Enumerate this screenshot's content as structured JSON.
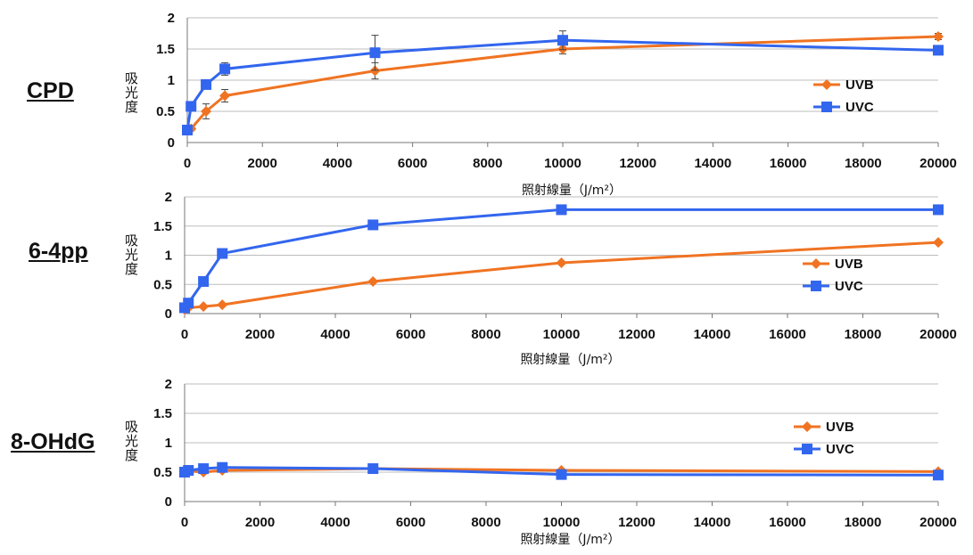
{
  "colors": {
    "uvb": "#f07322",
    "uvc": "#3366ee",
    "grid": "#bdbdbd",
    "axis": "#777777"
  },
  "chart_data": [
    {
      "type": "line",
      "panel_label": "CPD",
      "ylabel": "吸光度",
      "xlabel": "照射線量（J/m²）",
      "xlim": [
        0,
        20000
      ],
      "ylim": [
        0,
        2
      ],
      "xticks": [
        "0",
        "2000",
        "4000",
        "6000",
        "8000",
        "10000",
        "12000",
        "14000",
        "16000",
        "18000",
        "20000"
      ],
      "yticks": [
        "0",
        "0.5",
        "1",
        "1.5",
        "2"
      ],
      "grid": true,
      "legend_position": "right",
      "series": [
        {
          "name": "UVB",
          "marker": "diamond",
          "x": [
            0,
            100,
            500,
            1000,
            5000,
            10000,
            20000
          ],
          "y": [
            0.2,
            0.22,
            0.5,
            0.75,
            1.15,
            1.5,
            1.7
          ],
          "err": [
            0.03,
            0.03,
            0.12,
            0.1,
            0.13,
            0.08,
            0.05
          ]
        },
        {
          "name": "UVC",
          "marker": "square",
          "x": [
            0,
            100,
            500,
            1000,
            5000,
            10000,
            20000
          ],
          "y": [
            0.2,
            0.58,
            0.93,
            1.18,
            1.44,
            1.64,
            1.48
          ],
          "err": [
            0.03,
            0.04,
            0.04,
            0.1,
            0.28,
            0.15,
            0.07
          ]
        }
      ]
    },
    {
      "type": "line",
      "panel_label": "6-4pp",
      "ylabel": "吸光度",
      "xlabel": "照射線量（J/m²）",
      "xlim": [
        0,
        20000
      ],
      "ylim": [
        0,
        2
      ],
      "xticks": [
        "0",
        "2000",
        "4000",
        "6000",
        "8000",
        "10000",
        "12000",
        "14000",
        "16000",
        "18000",
        "20000"
      ],
      "yticks": [
        "0",
        "0.5",
        "1",
        "1.5",
        "2"
      ],
      "grid": true,
      "legend_position": "right",
      "series": [
        {
          "name": "UVB",
          "marker": "diamond",
          "x": [
            0,
            100,
            500,
            1000,
            5000,
            10000,
            20000
          ],
          "y": [
            0.07,
            0.1,
            0.12,
            0.15,
            0.55,
            0.87,
            1.22
          ]
        },
        {
          "name": "UVC",
          "marker": "square",
          "x": [
            0,
            100,
            500,
            1000,
            5000,
            10000,
            20000
          ],
          "y": [
            0.1,
            0.18,
            0.55,
            1.03,
            1.52,
            1.78,
            1.78
          ]
        }
      ]
    },
    {
      "type": "line",
      "panel_label": "8-OHdG",
      "ylabel": "吸光度",
      "xlabel": "照射線量（J/m²）",
      "xlim": [
        0,
        20000
      ],
      "ylim": [
        0,
        2
      ],
      "xticks": [
        "0",
        "2000",
        "4000",
        "6000",
        "8000",
        "10000",
        "12000",
        "14000",
        "16000",
        "18000",
        "20000"
      ],
      "yticks": [
        "0",
        "0.5",
        "1",
        "1.5",
        "2"
      ],
      "grid": true,
      "legend_position": "right",
      "series": [
        {
          "name": "UVB",
          "marker": "diamond",
          "x": [
            0,
            100,
            500,
            1000,
            5000,
            10000,
            20000
          ],
          "y": [
            0.5,
            0.52,
            0.5,
            0.53,
            0.56,
            0.53,
            0.51
          ]
        },
        {
          "name": "UVC",
          "marker": "square",
          "x": [
            0,
            100,
            500,
            1000,
            5000,
            10000,
            20000
          ],
          "y": [
            0.5,
            0.53,
            0.56,
            0.58,
            0.56,
            0.46,
            0.45
          ]
        }
      ]
    }
  ]
}
